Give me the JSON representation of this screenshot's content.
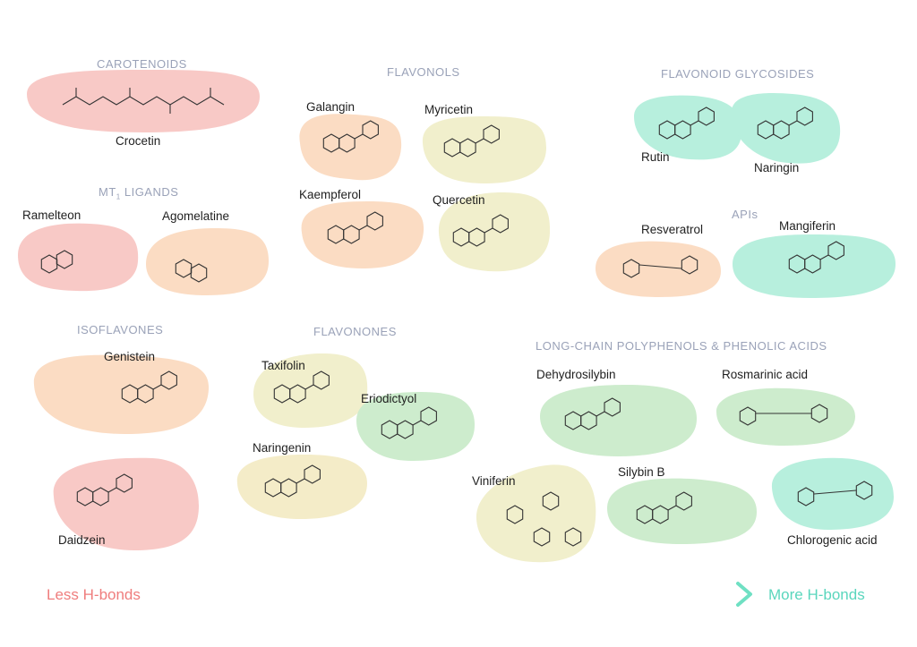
{
  "groups": {
    "carotenoids": "CAROTENOIDS",
    "flavonols": "FLAVONOLS",
    "flavonoid_glycosides": "FLAVONOID GLYCOSIDES",
    "mt1_ligands_prefix": "MT",
    "mt1_ligands_sub": "1",
    "mt1_ligands_suffix": " LIGANDS",
    "apis": "APIs",
    "isoflavones": "ISOFLAVONES",
    "flavonones": "FLAVONONES",
    "polyphenols": "LONG-CHAIN POLYPHENOLS & PHENOLIC ACIDS"
  },
  "compounds": {
    "crocetin": "Crocetin",
    "galangin": "Galangin",
    "myricetin": "Myricetin",
    "kaempferol": "Kaempferol",
    "quercetin": "Quercetin",
    "rutin": "Rutin",
    "naringin": "Naringin",
    "ramelteon": "Ramelteon",
    "agomelatine": "Agomelatine",
    "resveratrol": "Resveratrol",
    "mangiferin": "Mangiferin",
    "genistein": "Genistein",
    "daidzein": "Daidzein",
    "taxifolin": "Taxifolin",
    "eriodictyol": "Eriodictyol",
    "naringenin": "Naringenin",
    "dehydrosilybin": "Dehydrosilybin",
    "rosmarinic_acid": "Rosmarinic acid",
    "viniferin": "Viniferin",
    "silybin_b": "Silybin B",
    "chlorogenic_acid": "Chlorogenic acid"
  },
  "legend": {
    "left": "Less H-bonds",
    "right": "More H-bonds"
  },
  "colors": {
    "red": "#f8c9c6",
    "orange": "#fbdcc3",
    "yellow": "#f4ecc8",
    "green": "#cdeccd",
    "teal": "#b7efdd",
    "title": "#9aa2b8",
    "legend_left": "#ef7d7d",
    "legend_right": "#5ad6bd"
  }
}
